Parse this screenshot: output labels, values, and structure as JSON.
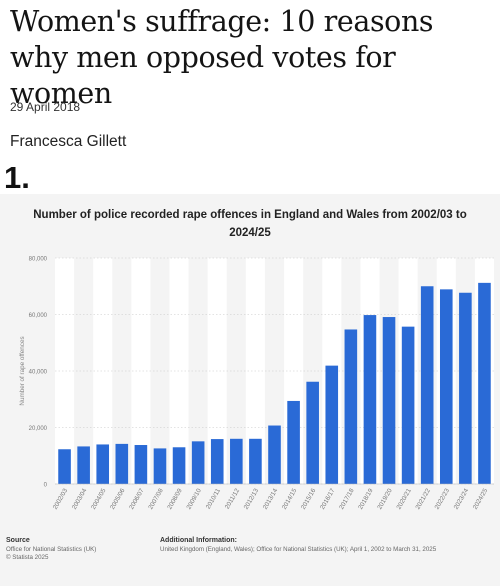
{
  "article": {
    "headline": "Women's suffrage: 10 reasons why men opposed votes for women",
    "date": "29 April 2018",
    "author": "Francesca Gillett",
    "item_number": "1."
  },
  "footer": {
    "source_heading": "Source",
    "source_line_1": "Office for National Statistics (UK)",
    "source_line_2": "© Statista 2025",
    "info_heading": "Additional Information:",
    "info_text": "United Kingdom (England, Wales); Office for National Statistics (UK); April 1, 2002 to March 31, 2025"
  },
  "colors": {
    "bar": "#2a6ad6",
    "panel": "#f4f4f4",
    "stripe": "#ffffff"
  },
  "chart_data": {
    "type": "bar",
    "title": "Number of police recorded rape offences in England and Wales from 2002/03 to 2024/25",
    "xlabel": "",
    "ylabel": "Number of rape offences",
    "ylim": [
      0,
      80000
    ],
    "yticks": [
      0,
      20000,
      40000,
      60000,
      80000
    ],
    "ytick_labels": [
      "0",
      "20,000",
      "40,000",
      "60,000",
      "80,000"
    ],
    "grid": true,
    "legend": "none",
    "categories": [
      "2002/03",
      "2003/04",
      "2004/05",
      "2005/06",
      "2006/07",
      "2007/08",
      "2008/09",
      "2009/10",
      "2010/11",
      "2011/12",
      "2012/13",
      "2013/14",
      "2014/15",
      "2015/16",
      "2016/17",
      "2017/18",
      "2018/19",
      "2019/20",
      "2020/21",
      "2021/22",
      "2022/23",
      "2023/24",
      "2024/25"
    ],
    "values": [
      12300,
      13300,
      14000,
      14200,
      13800,
      12600,
      13000,
      15100,
      15900,
      16000,
      16000,
      20700,
      29400,
      36200,
      41900,
      54700,
      59800,
      59100,
      55700,
      70000,
      68900,
      67700,
      71200
    ]
  }
}
